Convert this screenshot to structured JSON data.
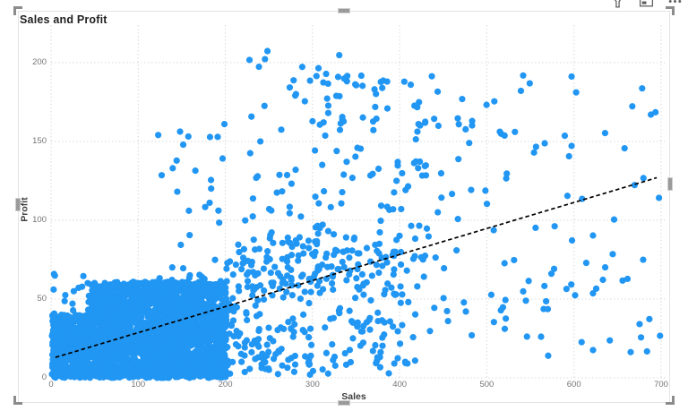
{
  "visual": {
    "title": "Sales and Profit",
    "selected": true,
    "header": {
      "icons": [
        {
          "name": "filter-icon",
          "label": "Filters"
        },
        {
          "name": "focus-mode-icon",
          "label": "Focus mode"
        },
        {
          "name": "more-options-icon",
          "label": "More options"
        }
      ]
    }
  },
  "chart_data": {
    "type": "scatter",
    "title": "Sales and Profit",
    "xlabel": "Sales",
    "ylabel": "Profit",
    "xlim": [
      0,
      700
    ],
    "ylim": [
      0,
      210
    ],
    "x_ticks": [
      0,
      100,
      200,
      300,
      400,
      500,
      600,
      700
    ],
    "y_ticks": [
      0,
      50,
      100,
      150,
      200
    ],
    "grid": "dotted",
    "grid_color": "#d9d9d9",
    "legend": "none",
    "point_color": "#2196F3",
    "point_radius_px": 3.6,
    "seed": 1337,
    "density_regions": [
      {
        "name": "dense-block-left",
        "x": [
          1,
          45
        ],
        "y": [
          0,
          40
        ],
        "count": 520
      },
      {
        "name": "dense-block-main",
        "x": [
          42,
          201
        ],
        "y": [
          0,
          61
        ],
        "count": 2300
      },
      {
        "name": "block-halo",
        "x": [
          2,
          208
        ],
        "y": [
          0,
          66
        ],
        "count": 120
      },
      {
        "name": "mid-band-near",
        "x": [
          201,
          300
        ],
        "y": [
          2,
          92
        ],
        "count": 170
      },
      {
        "name": "mid-band-far",
        "x": [
          300,
          420
        ],
        "y": [
          2,
          92
        ],
        "count": 130
      },
      {
        "name": "upper-cloud-left",
        "x": [
          122,
          255
        ],
        "y": [
          55,
          172
        ],
        "count": 42
      },
      {
        "name": "upper-cloud-core",
        "x": [
          250,
          430
        ],
        "y": [
          55,
          192
        ],
        "count": 150
      },
      {
        "name": "top-cluster",
        "x": [
          225,
          340
        ],
        "y": [
          160,
          208
        ],
        "count": 16
      },
      {
        "name": "right-mid",
        "x": [
          420,
          570
        ],
        "y": [
          25,
          200
        ],
        "count": 72
      },
      {
        "name": "far-right",
        "x": [
          565,
          700
        ],
        "y": [
          12,
          196
        ],
        "count": 46
      }
    ],
    "trend_line": {
      "style": "dashed",
      "color": "#000000",
      "points": [
        {
          "x": 5,
          "y": 13
        },
        {
          "x": 695,
          "y": 127
        }
      ]
    }
  }
}
